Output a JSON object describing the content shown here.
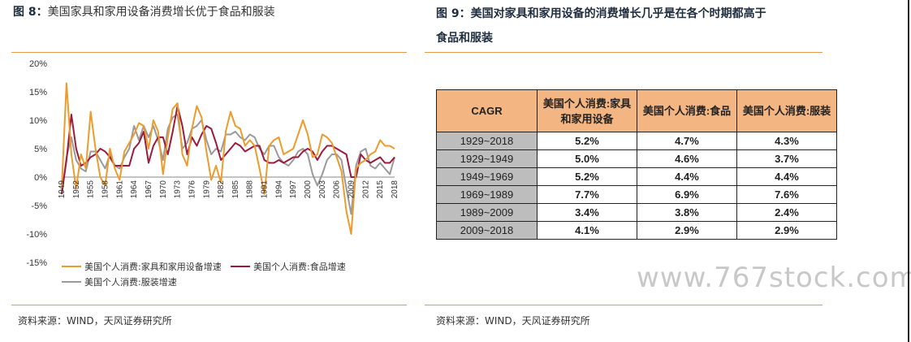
{
  "left_figure": {
    "label": "图 8：",
    "title": "美国家具和家用设备消费增长优于食品和服装",
    "source": "资料来源：WIND，天风证券研究所"
  },
  "right_figure": {
    "label": "图 9：",
    "title_line1": "美国对家具和家用设备的消费增长几乎是在各个时期都高于",
    "title_line2": "食品和服装",
    "source": "资料来源：WIND，天风证券研究所"
  },
  "watermark": "www.767stock.com",
  "colors": {
    "furniture": "#ed9b2c",
    "food": "#9c1a3c",
    "clothing": "#9a9a9a",
    "rule": "#e89a48",
    "table_header": "#f3b582",
    "table_period": "#bdbdbd"
  },
  "table": {
    "headers": [
      "CAGR",
      "美国个人消费:家具和家用设备",
      "美国个人消费:食品",
      "美国个人消费:服装"
    ],
    "rows": [
      {
        "period": "1929~2018",
        "furniture": "5.2%",
        "food": "4.7%",
        "clothing": "4.3%"
      },
      {
        "period": "1929~1949",
        "furniture": "5.0%",
        "food": "4.6%",
        "clothing": "3.7%"
      },
      {
        "period": "1949~1969",
        "furniture": "5.2%",
        "food": "4.4%",
        "clothing": "4.4%"
      },
      {
        "period": "1969~1989",
        "furniture": "7.7%",
        "food": "6.9%",
        "clothing": "7.6%"
      },
      {
        "period": "1989~2009",
        "furniture": "3.4%",
        "food": "3.8%",
        "clothing": "2.4%"
      },
      {
        "period": "2009~2018",
        "furniture": "4.1%",
        "food": "2.9%",
        "clothing": "2.9%"
      }
    ]
  },
  "chart_data": {
    "type": "line",
    "ylim": [
      -15,
      20
    ],
    "yticks": [
      "20%",
      "15%",
      "10%",
      "5%",
      "0%",
      "-5%",
      "-10%",
      "-15%"
    ],
    "ytick_values": [
      20,
      15,
      10,
      5,
      0,
      -5,
      -10,
      -15
    ],
    "xlim": [
      1949,
      2018
    ],
    "xticks": [
      "1949",
      "1952",
      "1955",
      "1958",
      "1961",
      "1964",
      "1967",
      "1970",
      "1973",
      "1976",
      "1979",
      "1982",
      "1985",
      "1988",
      "1991",
      "1994",
      "1997",
      "2000",
      "2003",
      "2006",
      "2009",
      "2012",
      "2015",
      "2018"
    ],
    "legend_placement": "bottom",
    "grid": false,
    "x": [
      1949,
      1950,
      1951,
      1952,
      1953,
      1954,
      1955,
      1956,
      1957,
      1958,
      1959,
      1960,
      1961,
      1962,
      1963,
      1964,
      1965,
      1966,
      1967,
      1968,
      1969,
      1970,
      1971,
      1972,
      1973,
      1974,
      1975,
      1976,
      1977,
      1978,
      1979,
      1980,
      1981,
      1982,
      1983,
      1984,
      1985,
      1986,
      1987,
      1988,
      1989,
      1990,
      1991,
      1992,
      1993,
      1994,
      1995,
      1996,
      1997,
      1998,
      1999,
      2000,
      2001,
      2002,
      2003,
      2004,
      2005,
      2006,
      2007,
      2008,
      2009,
      2010,
      2011,
      2012,
      2013,
      2014,
      2015,
      2016,
      2017,
      2018
    ],
    "series": [
      {
        "name": "美国个人消费:家具和家用设备增速",
        "color": "#ed9b2c",
        "values": [
          -2.0,
          16.5,
          4.0,
          -2.0,
          4.0,
          1.5,
          11.5,
          5.0,
          0.0,
          -1.5,
          5.0,
          1.5,
          -0.5,
          4.5,
          6.0,
          7.5,
          9.5,
          9.0,
          5.0,
          10.0,
          8.0,
          0.5,
          7.0,
          12.0,
          13.0,
          4.0,
          2.0,
          8.5,
          12.5,
          10.5,
          4.5,
          -0.5,
          2.0,
          -1.0,
          8.0,
          11.5,
          9.0,
          8.5,
          5.5,
          6.5,
          5.5,
          1.5,
          -3.0,
          5.5,
          6.5,
          7.0,
          4.0,
          4.5,
          5.0,
          7.5,
          10.0,
          7.5,
          3.5,
          4.0,
          7.5,
          7.0,
          6.0,
          3.5,
          1.0,
          -6.0,
          -10.0,
          1.5,
          2.5,
          3.0,
          4.0,
          4.5,
          6.5,
          5.5,
          5.5,
          5.0
        ]
      },
      {
        "name": "美国个人消费:食品增速",
        "color": "#9c1a3c",
        "values": [
          -3.0,
          3.0,
          11.0,
          5.0,
          2.0,
          2.5,
          3.5,
          4.0,
          5.0,
          4.5,
          3.5,
          2.0,
          2.0,
          2.0,
          2.0,
          5.0,
          6.0,
          8.0,
          2.5,
          5.5,
          7.0,
          7.0,
          4.0,
          8.0,
          12.5,
          9.0,
          4.0,
          7.0,
          5.5,
          7.5,
          9.0,
          8.5,
          6.0,
          3.0,
          4.0,
          5.0,
          6.0,
          5.5,
          4.5,
          5.0,
          5.5,
          5.5,
          3.0,
          2.5,
          2.5,
          3.0,
          2.5,
          3.0,
          3.5,
          3.5,
          4.5,
          5.0,
          4.5,
          3.0,
          4.5,
          5.5,
          5.5,
          5.0,
          4.5,
          4.0,
          0.0,
          0.0,
          4.0,
          3.0,
          2.5,
          3.0,
          3.5,
          2.5,
          2.5,
          3.5
        ]
      },
      {
        "name": "美国个人消费:服装增速",
        "color": "#9a9a9a",
        "values": [
          -3.0,
          3.5,
          7.0,
          3.0,
          1.5,
          1.0,
          4.5,
          4.5,
          3.0,
          1.5,
          4.0,
          2.0,
          1.5,
          3.5,
          5.0,
          9.0,
          6.5,
          9.0,
          7.0,
          9.0,
          6.5,
          3.0,
          8.5,
          10.5,
          11.0,
          5.0,
          6.0,
          8.5,
          9.0,
          10.0,
          6.5,
          4.0,
          5.0,
          4.5,
          7.5,
          7.5,
          8.0,
          7.0,
          6.5,
          7.5,
          7.0,
          5.0,
          4.0,
          5.5,
          5.5,
          3.5,
          2.5,
          2.0,
          3.0,
          4.5,
          5.0,
          4.0,
          0.5,
          -1.5,
          0.5,
          3.0,
          4.0,
          4.0,
          3.0,
          -2.0,
          -6.5,
          2.0,
          4.5,
          5.0,
          2.0,
          1.5,
          2.5,
          1.5,
          0.5,
          3.5
        ]
      }
    ]
  }
}
